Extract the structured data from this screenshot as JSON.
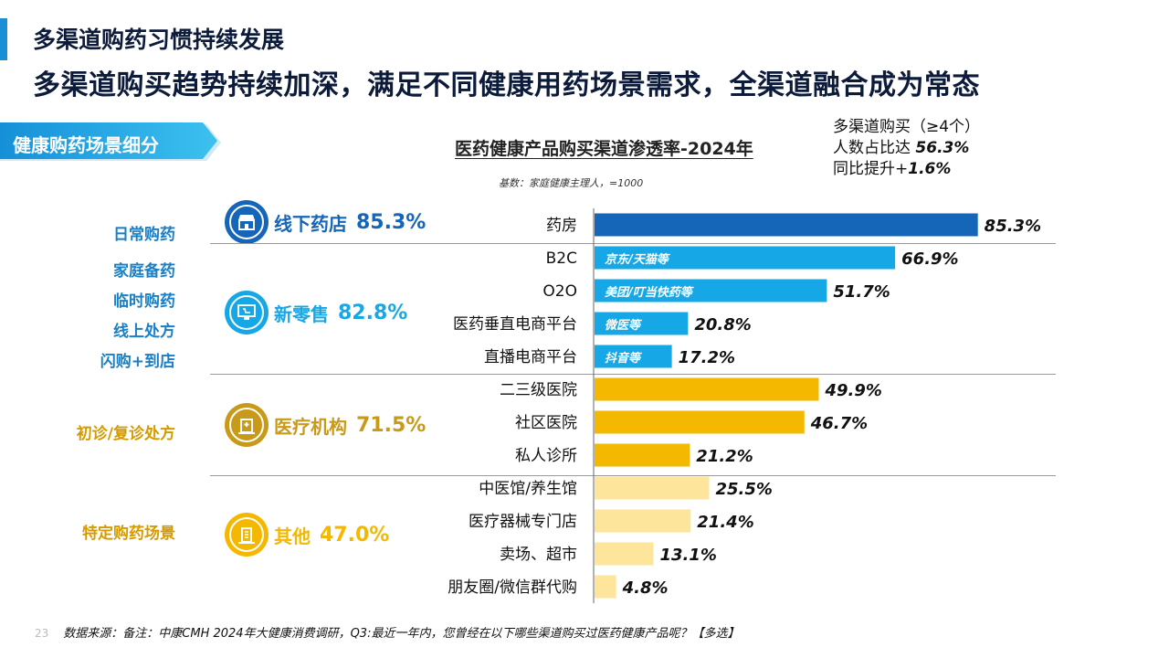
{
  "header": {
    "title": "多渠道购药习惯持续发展",
    "subtitle": "多渠道购买趋势持续加深，满足不同健康用药场景需求，全渠道融合成为常态"
  },
  "section_tag": "健康购药场景细分",
  "colors": {
    "accent": "#1a8fd6",
    "dark_blue": "#1565b8",
    "light_blue": "#16a8e6",
    "gold": "#f5b800",
    "light_gold": "#fde69c"
  },
  "multi_channel": {
    "line1": "多渠道购买（≥4个）",
    "line2_prefix": "人数占比达",
    "line2_value": "56.3%",
    "line3_prefix": "同比提升+",
    "line3_value": "1.6%"
  },
  "scenes": {
    "daily": "日常购药",
    "family": "家庭备药",
    "temporary": "临时购药",
    "online_rx": "线上处方",
    "flash": "闪购+到店",
    "diagnosis": "初诊/复诊处方",
    "specific": "特定购药场景"
  },
  "channels": [
    {
      "label": "线下药店",
      "pct": "85.3%",
      "icon": "store-icon"
    },
    {
      "label": "新零售",
      "pct": "82.8%",
      "icon": "screen-cart-icon"
    },
    {
      "label": "医疗机构",
      "pct": "71.5%",
      "icon": "hospital-icon"
    },
    {
      "label": "其他",
      "pct": "47.0%",
      "icon": "building-icon"
    }
  ],
  "chart_data": {
    "type": "bar",
    "title": "医药健康产品购买渠道渗透率-2024年",
    "note": "基数：家庭健康主理人，=1000",
    "categories": [
      "药房",
      "B2C",
      "O2O",
      "医药垂直电商平台",
      "直播电商平台",
      "二三级医院",
      "社区医院",
      "私人诊所",
      "中医馆/养生馆",
      "医疗器械专门店",
      "卖场、超市",
      "朋友圈/微信群代购"
    ],
    "values": [
      85.3,
      66.9,
      51.7,
      20.8,
      17.2,
      49.9,
      46.7,
      21.2,
      25.5,
      21.4,
      13.1,
      4.8
    ],
    "value_labels": [
      "85.3%",
      "66.9%",
      "51.7%",
      "20.8%",
      "17.2%",
      "49.9%",
      "46.7%",
      "21.2%",
      "25.5%",
      "21.4%",
      "13.1%",
      "4.8%"
    ],
    "inbar_labels": [
      "",
      "京东/天猫等",
      "美团/叮当快药等",
      "微医等",
      "抖音等",
      "",
      "",
      "",
      "",
      "",
      "",
      ""
    ],
    "bar_colors": [
      "#1565b8",
      "#16a8e6",
      "#16a8e6",
      "#16a8e6",
      "#16a8e6",
      "#f5b800",
      "#f5b800",
      "#f5b800",
      "#fde69c",
      "#fde69c",
      "#fde69c",
      "#fde69c"
    ],
    "xlim": [
      0,
      100
    ]
  },
  "footer": {
    "page": "23",
    "source": "数据来源：备注：中康CMH 2024年大健康消费调研，Q3:最近一年内，您曾经在以下哪些渠道购买过医药健康产品呢？【多选】"
  }
}
